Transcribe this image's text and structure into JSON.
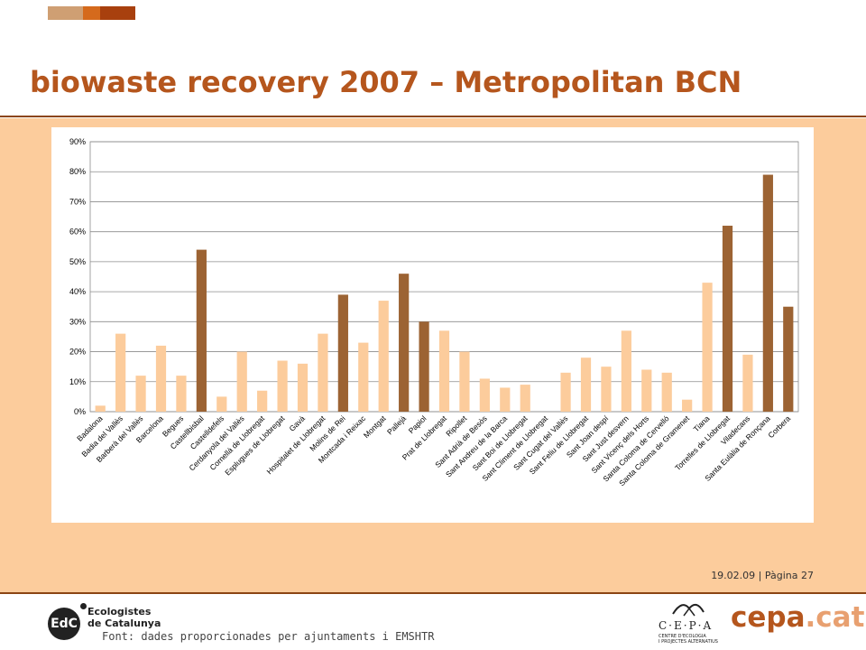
{
  "header": {
    "title": "biowaste recovery 2007 – Metropolitan BCN",
    "bar_colors": [
      "#cf9f73",
      "#d56a1c",
      "#a8400e"
    ]
  },
  "colors": {
    "title": "#b5561d",
    "rule": "#8b4513",
    "band": "#fccc9c",
    "bar_light": "#fccc9c",
    "bar_dark": "#9c6333"
  },
  "chart_data": {
    "type": "bar",
    "title": "",
    "xlabel": "",
    "ylabel": "",
    "ylim": [
      0,
      0.9
    ],
    "yticks": [
      "0%",
      "10%",
      "20%",
      "30%",
      "40%",
      "50%",
      "60%",
      "70%",
      "80%",
      "90%"
    ],
    "grid": true,
    "legend": "none",
    "categories": [
      "Badalona",
      "Badia del Vallès",
      "Barberà del Vallès",
      "Barcelona",
      "Begues",
      "Castellbisbal",
      "Castelldefels",
      "Cerdanyola del Vallès",
      "Cornellà de Llobregat",
      "Esplugues de Llobregat",
      "Gavà",
      "Hospitalet de Llobregat",
      "Molins de Rei",
      "Montcada i Reixac",
      "Montgat",
      "Pallejà",
      "Papiol",
      "Prat de Llobregat",
      "Ripollet",
      "Sant Adrià de Besòs",
      "Sant Andreu de la Barca",
      "Sant Boi de Llobregat",
      "Sant Climent de Llobregat",
      "Sant Cugat del Vallès",
      "Sant Feliu de Llobregat",
      "Sant Joan despí",
      "Sant Just desvern",
      "Sant Vicenç dels Horts",
      "Santa Coloma de Cervelló",
      "Santa Coloma de Gramenet",
      "Tiana",
      "Torrelles de Llobregat",
      "Viladecans",
      "Santa Eulàlia de Ronçana",
      "Corbera"
    ],
    "values": [
      0.02,
      0.26,
      0.12,
      0.22,
      0.12,
      0.54,
      0.05,
      0.2,
      0.07,
      0.17,
      0.16,
      0.26,
      0.39,
      0.23,
      0.37,
      0.46,
      0.3,
      0.27,
      0.2,
      0.11,
      0.08,
      0.09,
      0.0,
      0.13,
      0.18,
      0.15,
      0.27,
      0.14,
      0.13,
      0.04,
      0.43,
      0.62,
      0.19,
      0.79,
      0.35
    ],
    "highlighted": [
      "Castellbisbal",
      "Molins de Rei",
      "Pallejà",
      "Papiol",
      "Torrelles de Llobregat",
      "Santa Eulàlia de Ronçana",
      "Corbera"
    ]
  },
  "footer": {
    "date_page": "19.02.09 | Pàgina 27",
    "source": "Font: dades proporcionades per ajuntaments i EMSHTR"
  },
  "logos": {
    "edc_mark": "EdC",
    "edc_name": "Ecologistes\nde Catalunya",
    "cepa_letters": "C·E·P·A",
    "cepa_subtitle": "CENTRE D'ECOLOGIA\nI PROJECTES ALTERNATIUS",
    "cepa_word": "cepa",
    "cepa_ext": ".cat"
  }
}
